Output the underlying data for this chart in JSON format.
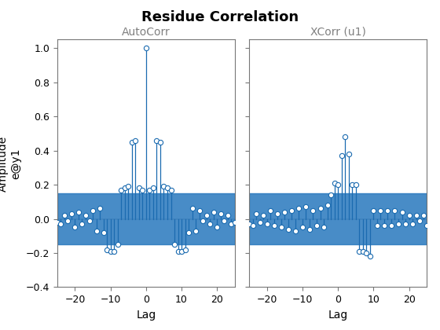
{
  "title": "Residue Correlation",
  "ax1_title": "AutoCorr",
  "ax2_title": "XCorr (u1)",
  "ylabel": "Amplitude\ne@y1",
  "xlabel": "Lag",
  "xlim": [
    -25,
    25
  ],
  "ylim": [
    -0.4,
    1.05
  ],
  "yticks": [
    -0.4,
    -0.2,
    0.0,
    0.2,
    0.4,
    0.6,
    0.8,
    1.0
  ],
  "xticks": [
    -20,
    -10,
    0,
    10,
    20
  ],
  "conf_band": 0.15,
  "conf_color": "#2878BE",
  "line_color": "#1B6BB0",
  "marker_color": "#1B6BB0",
  "background_color": "#FFFFFF",
  "title_fontsize": 13,
  "label_fontsize": 10,
  "tick_fontsize": 9,
  "autocorr_lags": [
    -25,
    -24,
    -23,
    -22,
    -21,
    -20,
    -19,
    -18,
    -17,
    -16,
    -15,
    -14,
    -13,
    -12,
    -11,
    -10,
    -9,
    -8,
    -7,
    -6,
    -5,
    -4,
    -3,
    -2,
    -1,
    0,
    1,
    2,
    3,
    4,
    5,
    6,
    7,
    8,
    9,
    10,
    11,
    12,
    13,
    14,
    15,
    16,
    17,
    18,
    19,
    20,
    21,
    22,
    23,
    24,
    25
  ],
  "autocorr_vals": [
    -0.02,
    -0.03,
    0.02,
    -0.01,
    0.03,
    -0.05,
    0.04,
    -0.03,
    0.02,
    -0.01,
    0.05,
    -0.07,
    0.06,
    -0.08,
    -0.18,
    -0.19,
    -0.19,
    -0.15,
    0.17,
    0.18,
    0.19,
    0.45,
    0.46,
    0.18,
    0.17,
    1.0,
    0.17,
    0.18,
    0.46,
    0.45,
    0.19,
    0.18,
    0.17,
    -0.15,
    -0.19,
    -0.19,
    -0.18,
    -0.08,
    0.06,
    -0.07,
    0.05,
    -0.01,
    0.02,
    -0.03,
    0.04,
    -0.05,
    0.03,
    -0.01,
    0.02,
    -0.03,
    -0.02
  ],
  "xcorr_lags": [
    -25,
    -24,
    -23,
    -22,
    -21,
    -20,
    -19,
    -18,
    -17,
    -16,
    -15,
    -14,
    -13,
    -12,
    -11,
    -10,
    -9,
    -8,
    -7,
    -6,
    -5,
    -4,
    -3,
    -2,
    -1,
    0,
    1,
    2,
    3,
    4,
    5,
    6,
    7,
    8,
    9,
    10,
    11,
    12,
    13,
    14,
    15,
    16,
    17,
    18,
    19,
    20,
    21,
    22,
    23,
    24,
    25
  ],
  "xcorr_vals": [
    -0.03,
    -0.04,
    0.03,
    -0.02,
    0.02,
    -0.03,
    0.05,
    -0.04,
    0.03,
    -0.05,
    0.04,
    -0.06,
    0.05,
    -0.07,
    0.06,
    -0.05,
    0.07,
    -0.06,
    0.05,
    -0.04,
    0.06,
    -0.05,
    0.08,
    0.14,
    0.21,
    0.2,
    0.37,
    0.48,
    0.38,
    0.2,
    0.2,
    -0.19,
    -0.19,
    -0.2,
    -0.22,
    0.05,
    -0.04,
    0.05,
    -0.04,
    0.05,
    -0.04,
    0.05,
    -0.03,
    0.04,
    -0.03,
    0.02,
    -0.03,
    0.02,
    -0.01,
    0.02,
    -0.04
  ]
}
